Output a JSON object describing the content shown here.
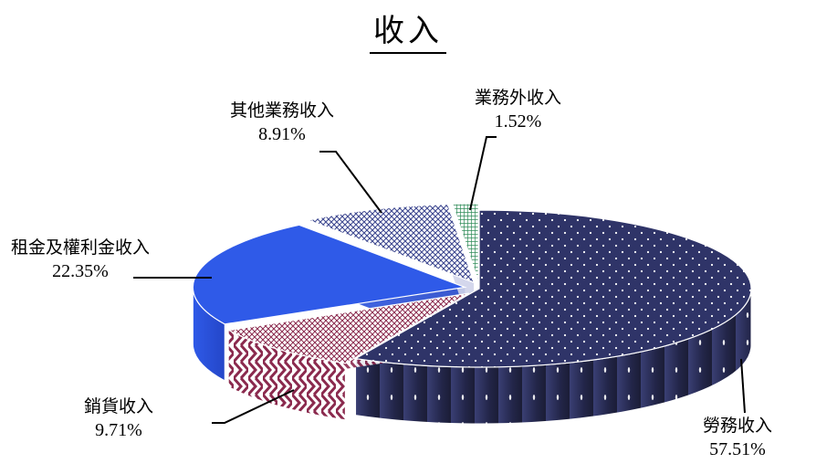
{
  "chart_data": {
    "type": "pie",
    "title": "收入",
    "slices": [
      {
        "name": "勞務收入",
        "value": 57.51,
        "value_label": "57.51%",
        "color": "#2b2e5a"
      },
      {
        "name": "銷貨收入",
        "value": 9.71,
        "value_label": "9.71%",
        "color": "#8b2a4e"
      },
      {
        "name": "租金及權利金收入",
        "value": 22.35,
        "value_label": "22.35%",
        "color": "#2f5ae8"
      },
      {
        "name": "其他業務收入",
        "value": 8.91,
        "value_label": "8.91%",
        "color": "#3e4890"
      },
      {
        "name": "業務外收入",
        "value": 1.52,
        "value_label": "1.52%",
        "color": "#2e8b57"
      }
    ],
    "legend": "none",
    "style": "3d-exploded"
  }
}
